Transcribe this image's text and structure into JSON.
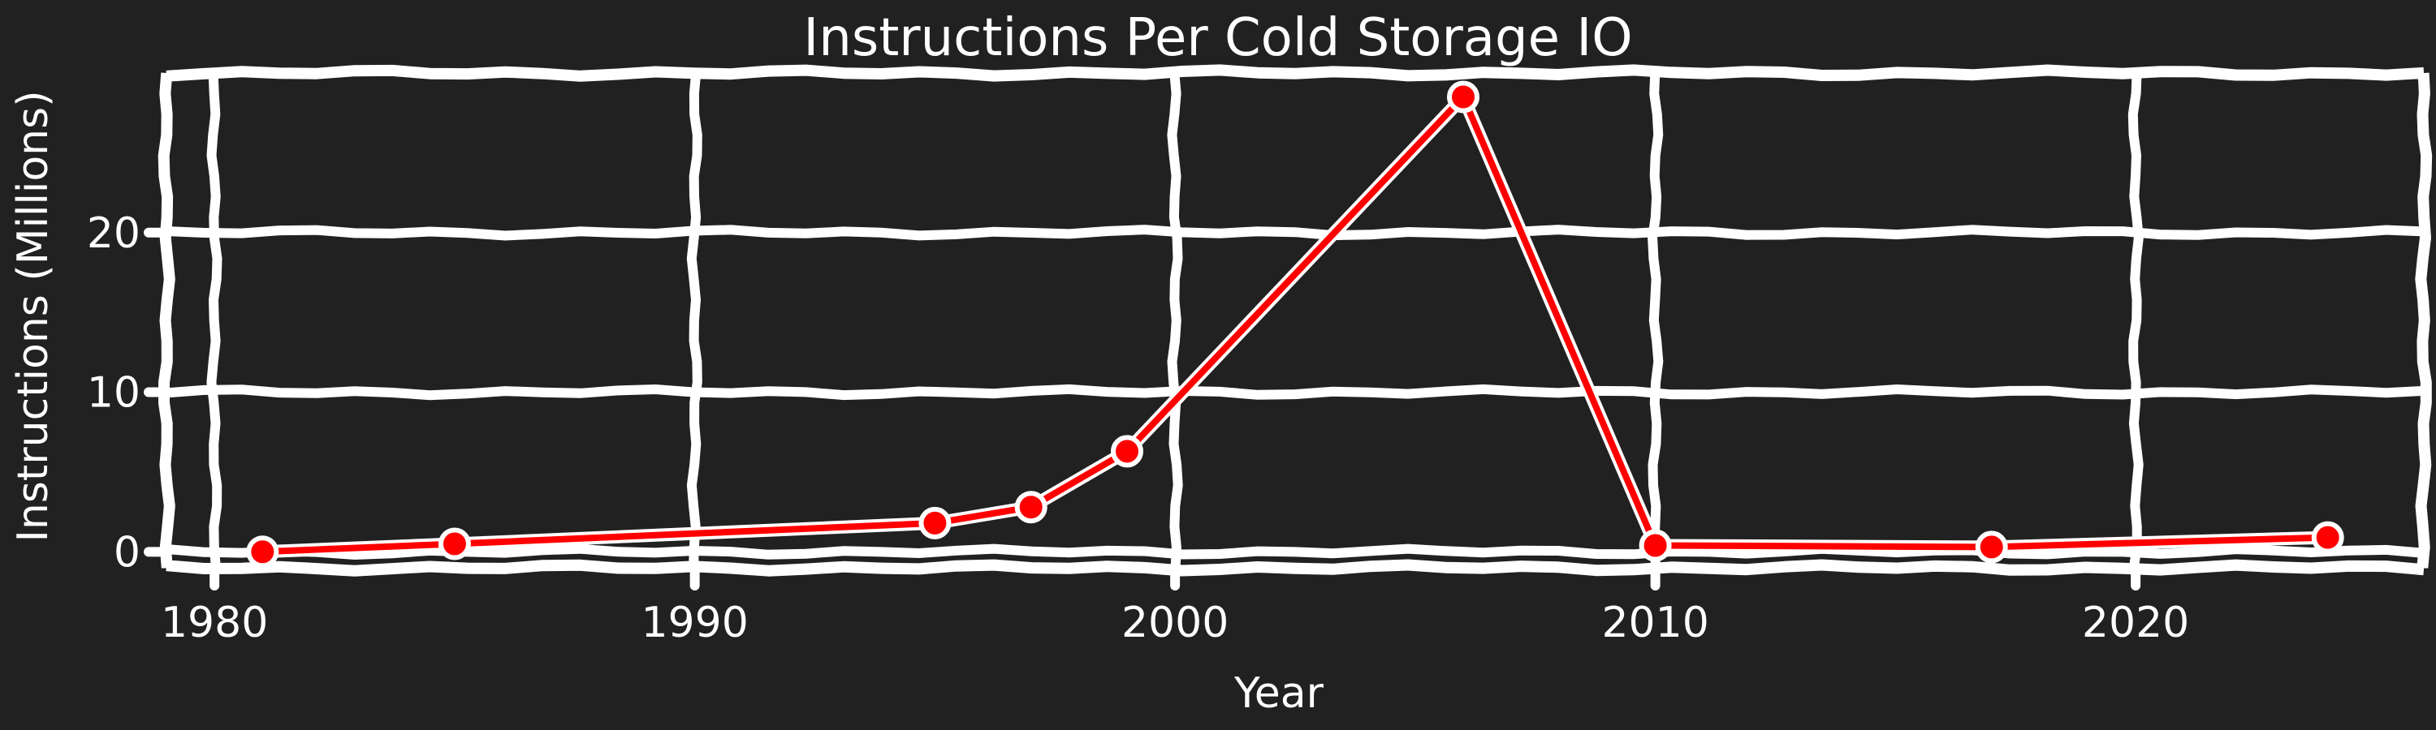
{
  "chart_data": {
    "type": "line",
    "title": "Instructions Per Cold Storage IO",
    "xlabel": "Year",
    "ylabel": "Instructions (Millions)",
    "xlim": [
      1979,
      2026
    ],
    "ylim": [
      -1,
      30
    ],
    "x_ticks": [
      1980,
      1990,
      2000,
      2010,
      2020
    ],
    "y_ticks": [
      0,
      10,
      20
    ],
    "grid": true,
    "series": [
      {
        "color": "#ff0000",
        "marker_edge_color": "#ffffff",
        "points": [
          {
            "x": 1981,
            "y": 0.0
          },
          {
            "x": 1985,
            "y": 0.5
          },
          {
            "x": 1995,
            "y": 1.8
          },
          {
            "x": 1997,
            "y": 2.8
          },
          {
            "x": 1999,
            "y": 6.3
          },
          {
            "x": 2006,
            "y": 28.5
          },
          {
            "x": 2010,
            "y": 0.4
          },
          {
            "x": 2017,
            "y": 0.3
          },
          {
            "x": 2024,
            "y": 0.9
          }
        ]
      }
    ]
  }
}
